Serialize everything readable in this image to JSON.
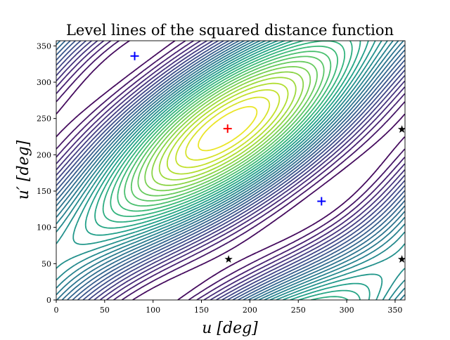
{
  "chart_data": {
    "type": "contour",
    "title": "Level lines of the squared distance function",
    "xlabel": "u [deg]",
    "ylabel": "u′ [deg]",
    "xlim": [
      0,
      360
    ],
    "ylim": [
      0,
      360
    ],
    "xticks": [
      0,
      50,
      100,
      150,
      200,
      250,
      300,
      350
    ],
    "yticks": [
      0,
      50,
      100,
      150,
      200,
      250,
      300,
      350
    ],
    "grid": false,
    "colormap": "viridis",
    "markers": [
      {
        "kind": "plus",
        "color": "#0000ff",
        "x": 81,
        "y": 336
      },
      {
        "kind": "plus",
        "color": "#0000ff",
        "x": 274,
        "y": 136
      },
      {
        "kind": "plus",
        "color": "#ff0000",
        "x": 177,
        "y": 236
      },
      {
        "kind": "star",
        "color": "#000000",
        "x": 178,
        "y": 56
      },
      {
        "kind": "star",
        "color": "#000000",
        "x": 357,
        "y": 235
      },
      {
        "kind": "star",
        "color": "#000000",
        "x": 357,
        "y": 56
      }
    ]
  }
}
